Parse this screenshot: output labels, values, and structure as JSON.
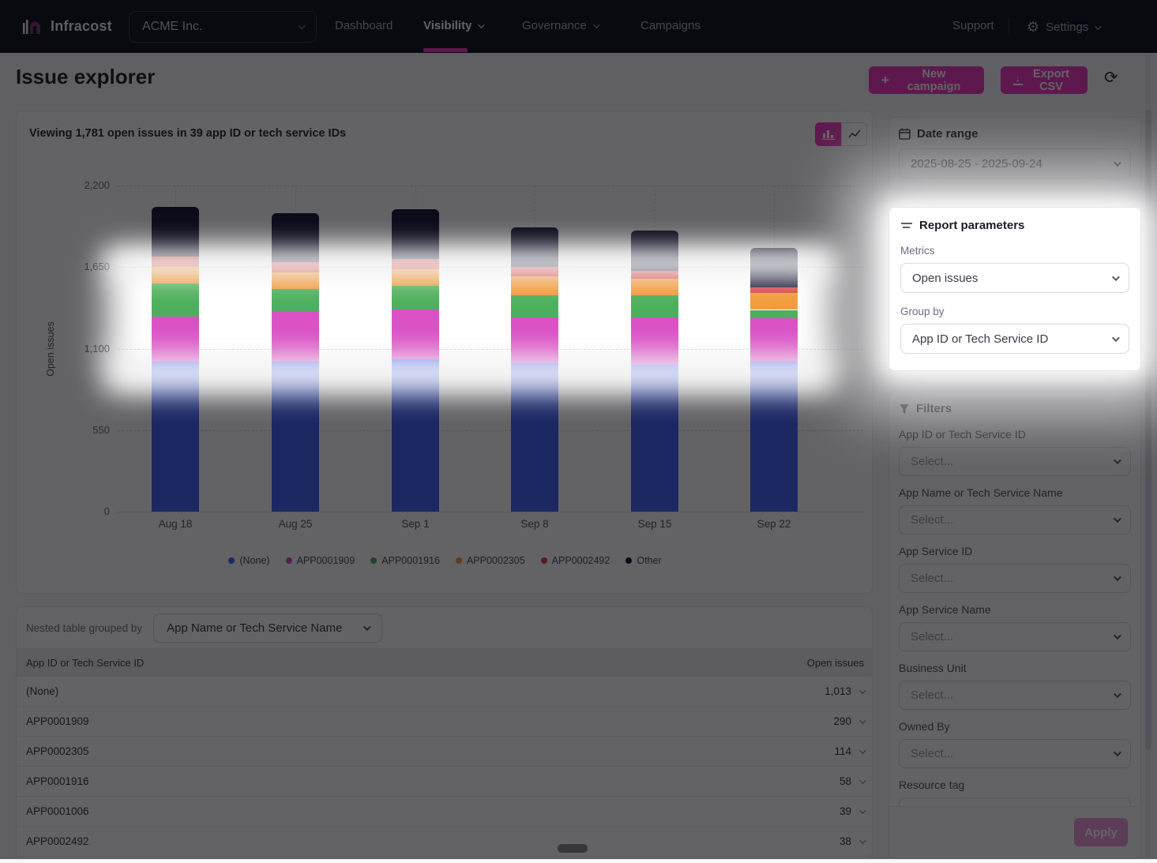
{
  "nav": {
    "brand": "Infracost",
    "org": "ACME Inc.",
    "items": [
      {
        "label": "Dashboard"
      },
      {
        "label": "Visibility"
      },
      {
        "label": "Governance"
      },
      {
        "label": "Campaigns"
      }
    ],
    "support": "Support",
    "settings": "Settings"
  },
  "header": {
    "title": "Issue explorer",
    "new_campaign": "New campaign",
    "export_csv": "Export CSV"
  },
  "chart": {
    "caption": {
      "pre": "Viewing ",
      "count": "1,781",
      "mid": " open issues in ",
      "ids": "39",
      "post": " app ID or tech service IDs"
    }
  },
  "chart_data": {
    "type": "bar",
    "stacked": true,
    "title": "Viewing 1,781 open issues in 39 app ID or tech service IDs",
    "categories": [
      "Aug 18",
      "Aug 25",
      "Sep 1",
      "Sep 8",
      "Sep 15",
      "Sep 22"
    ],
    "series": [
      {
        "name": "(None)",
        "color": "#4464F4",
        "values": [
          1012,
          1012,
          1028,
          1001,
          990,
          1013
        ]
      },
      {
        "name": "APP0001909",
        "color": "#DA50C5",
        "values": [
          303,
          341,
          335,
          309,
          319,
          290
        ]
      },
      {
        "name": "APP0001916",
        "color": "#4DAF5C",
        "values": [
          224,
          149,
          160,
          149,
          149,
          58
        ]
      },
      {
        "name": "APP0002305",
        "color": "#F19B3B",
        "values": [
          112,
          112,
          112,
          128,
          112,
          114
        ]
      },
      {
        "name": "APP0002492",
        "color": "#D94444",
        "values": [
          69,
          69,
          69,
          64,
          53,
          38
        ]
      },
      {
        "name": "Other",
        "color": "#1A1A38",
        "values": [
          335,
          330,
          335,
          266,
          272,
          268
        ]
      }
    ],
    "xlabel": "",
    "ylabel": "Open issues",
    "ylim": [
      0,
      2200
    ],
    "yticks": [
      0,
      550,
      1100,
      1650,
      2200
    ],
    "ytick_labels": [
      "0",
      "550",
      "1,100",
      "1,650",
      "2,200"
    ],
    "grid": "dashed horizontal and vertical",
    "legend_position": "bottom"
  },
  "sidebar": {
    "date_range": {
      "title": "Date range",
      "value": "2025-08-25 - 2025-09-24"
    },
    "report_params": {
      "title": "Report parameters",
      "metrics_label": "Metrics",
      "metrics_value": "Open issues",
      "groupby_label": "Group by",
      "groupby_value": "App ID or Tech Service ID"
    },
    "filters": {
      "title": "Filters",
      "fields": [
        {
          "label": "App ID or Tech Service ID",
          "placeholder": "Select..."
        },
        {
          "label": "App Name or Tech Service Name",
          "placeholder": "Select..."
        },
        {
          "label": "App Service ID",
          "placeholder": "Select..."
        },
        {
          "label": "App Service Name",
          "placeholder": "Select..."
        },
        {
          "label": "Business Unit",
          "placeholder": "Select..."
        },
        {
          "label": "Owned By",
          "placeholder": "Select..."
        },
        {
          "label": "Resource tag",
          "placeholder": "Select..."
        }
      ],
      "apply": "Apply"
    }
  },
  "table": {
    "grouped_by_label": "Nested table grouped by",
    "grouped_by_value": "App Name or Tech Service Name",
    "columns": [
      "App ID or Tech Service ID",
      "Open issues"
    ],
    "rows": [
      {
        "id": "(None)",
        "value": "1,013"
      },
      {
        "id": "APP0001909",
        "value": "290"
      },
      {
        "id": "APP0002305",
        "value": "114"
      },
      {
        "id": "APP0001916",
        "value": "58"
      },
      {
        "id": "APP0001006",
        "value": "39"
      },
      {
        "id": "APP0002492",
        "value": "38"
      }
    ]
  }
}
